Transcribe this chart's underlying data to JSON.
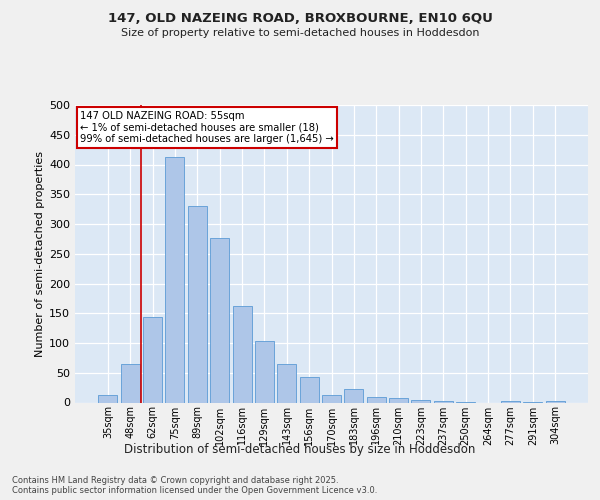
{
  "title1": "147, OLD NAZEING ROAD, BROXBOURNE, EN10 6QU",
  "title2": "Size of property relative to semi-detached houses in Hoddesdon",
  "xlabel": "Distribution of semi-detached houses by size in Hoddesdon",
  "ylabel": "Number of semi-detached properties",
  "categories": [
    "35sqm",
    "48sqm",
    "62sqm",
    "75sqm",
    "89sqm",
    "102sqm",
    "116sqm",
    "129sqm",
    "143sqm",
    "156sqm",
    "170sqm",
    "183sqm",
    "196sqm",
    "210sqm",
    "223sqm",
    "237sqm",
    "250sqm",
    "264sqm",
    "277sqm",
    "291sqm",
    "304sqm"
  ],
  "values": [
    12,
    65,
    143,
    413,
    330,
    277,
    162,
    103,
    65,
    43,
    13,
    23,
    10,
    7,
    4,
    2,
    1,
    0,
    2,
    1,
    2
  ],
  "bar_color": "#aec6e8",
  "bar_edge_color": "#5b9bd5",
  "vline_index": 1.5,
  "vline_color": "#cc0000",
  "annotation_text": "147 OLD NAZEING ROAD: 55sqm\n← 1% of semi-detached houses are smaller (18)\n99% of semi-detached houses are larger (1,645) →",
  "annotation_box_color": "#ffffff",
  "annotation_box_edge_color": "#cc0000",
  "background_color": "#dce8f5",
  "grid_color": "#ffffff",
  "fig_background": "#f0f0f0",
  "footer": "Contains HM Land Registry data © Crown copyright and database right 2025.\nContains public sector information licensed under the Open Government Licence v3.0.",
  "ylim": [
    0,
    500
  ],
  "yticks": [
    0,
    50,
    100,
    150,
    200,
    250,
    300,
    350,
    400,
    450,
    500
  ]
}
